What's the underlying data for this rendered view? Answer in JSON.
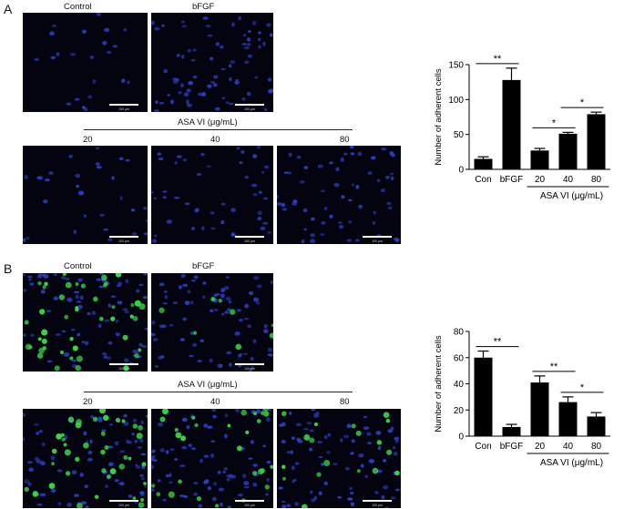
{
  "panels": [
    {
      "letter": "A",
      "image_labels": {
        "control": "Control",
        "bfgf": "bFGF",
        "treatment": "ASA VI (μg/mL)",
        "d20": "20",
        "d40": "40",
        "d80": "80"
      },
      "scale_bar": "100 μm",
      "green": false
    },
    {
      "letter": "B",
      "image_labels": {
        "control": "Control",
        "bfgf": "bFGF",
        "treatment": "ASA VI (μg/mL)",
        "d20": "20",
        "d40": "40",
        "d80": "80"
      },
      "scale_bar": "100 μm",
      "green": true
    }
  ],
  "colors": {
    "nuclei": "#2e3fc4",
    "green_cells": "#3ad64a",
    "bars": "#000000",
    "background": "#03040f"
  },
  "chart_data": [
    {
      "type": "bar",
      "categories": [
        "Con",
        "bFGF",
        "20",
        "40",
        "80"
      ],
      "values": [
        15,
        128,
        27,
        51,
        79
      ],
      "errors": [
        3,
        17,
        3,
        2,
        3
      ],
      "ylabel": "Number of adherent cells",
      "ylim": [
        0,
        150
      ],
      "yticks": [
        0,
        50,
        100,
        150
      ],
      "group_label": "ASA VI (μg/mL)",
      "group_indices": [
        2,
        3,
        4
      ],
      "significance": [
        {
          "from": 0,
          "to": 1,
          "label": "**"
        },
        {
          "from": 2,
          "to": 3,
          "label": "*"
        },
        {
          "from": 3,
          "to": 4,
          "label": "*"
        }
      ]
    },
    {
      "type": "bar",
      "categories": [
        "Con",
        "bFGF",
        "20",
        "40",
        "80"
      ],
      "values": [
        60,
        7,
        41,
        26,
        15
      ],
      "errors": [
        5,
        2,
        5,
        4,
        3
      ],
      "ylabel": "Number of adherent cells",
      "ylim": [
        0,
        80
      ],
      "yticks": [
        0,
        20,
        40,
        60,
        80
      ],
      "group_label": "ASA VI (μg/mL)",
      "group_indices": [
        2,
        3,
        4
      ],
      "significance": [
        {
          "from": 0,
          "to": 1,
          "label": "**"
        },
        {
          "from": 2,
          "to": 3,
          "label": "**"
        },
        {
          "from": 3,
          "to": 4,
          "label": "*"
        }
      ]
    }
  ]
}
